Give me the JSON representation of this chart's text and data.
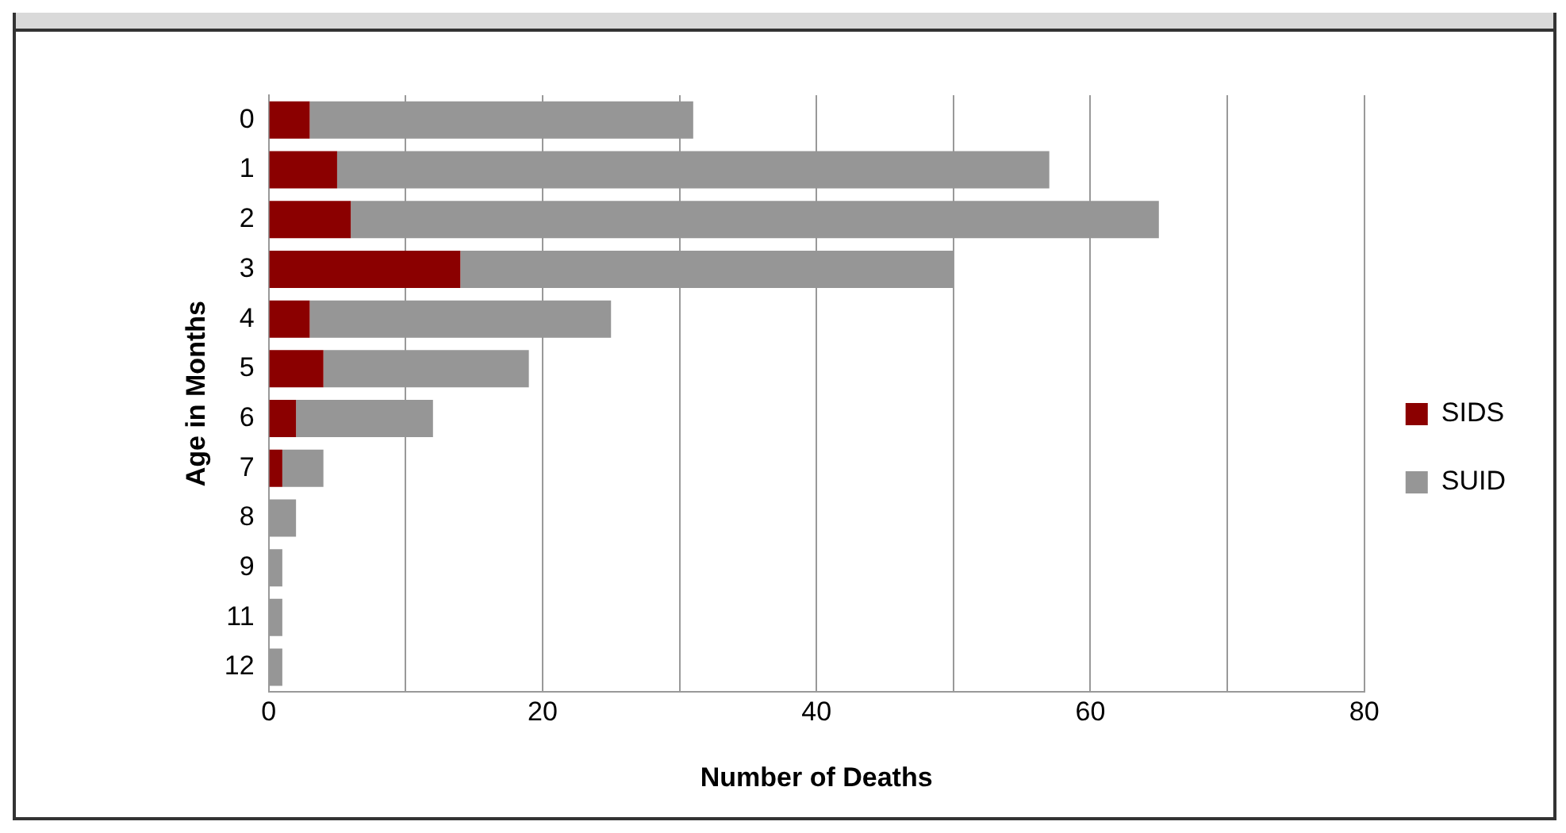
{
  "chart_data": {
    "type": "bar",
    "orientation": "horizontal",
    "stacked": true,
    "xlabel": "Number of Deaths",
    "ylabel": "Age in Months",
    "categories": [
      "0",
      "1",
      "2",
      "3",
      "4",
      "5",
      "6",
      "7",
      "8",
      "9",
      "11",
      "12"
    ],
    "series": [
      {
        "name": "SIDS",
        "color": "#8b0000",
        "values": [
          3,
          5,
          6,
          14,
          3,
          4,
          2,
          1,
          0,
          0,
          0,
          0
        ]
      },
      {
        "name": "SUID",
        "color": "#969696",
        "values": [
          28,
          52,
          59,
          36,
          22,
          15,
          10,
          3,
          2,
          1,
          1,
          1
        ]
      }
    ],
    "xlim": [
      0,
      80
    ],
    "xticks": [
      0,
      {
        "value": 10,
        "label": null
      },
      20,
      {
        "value": 30,
        "label": null
      },
      40,
      {
        "value": 50,
        "label": null
      },
      60,
      {
        "value": 70,
        "label": null
      },
      80
    ],
    "grid": "x",
    "legend": "right"
  }
}
